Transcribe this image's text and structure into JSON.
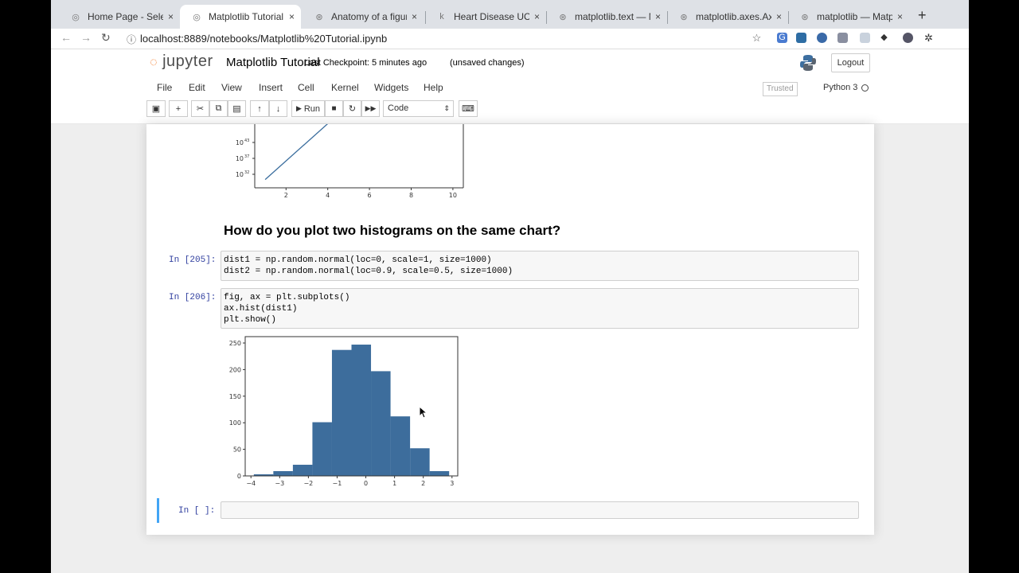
{
  "browser": {
    "tabs": [
      {
        "title": "Home Page - Select o",
        "favicon": "jupyter-icon",
        "active": false
      },
      {
        "title": "Matplotlib Tutorial - Ju",
        "favicon": "jupyter-icon",
        "active": true
      },
      {
        "title": "Anatomy of a figure —",
        "favicon": "matplotlib-icon",
        "active": false
      },
      {
        "title": "Heart Disease UCI | K",
        "favicon": "kaggle-icon",
        "active": false
      },
      {
        "title": "matplotlib.text — Mat",
        "favicon": "matplotlib-icon",
        "active": false
      },
      {
        "title": "matplotlib.axes.Axes.t",
        "favicon": "matplotlib-icon",
        "active": false
      },
      {
        "title": "matplotlib — Matplotl",
        "favicon": "matplotlib-icon",
        "active": false
      }
    ],
    "close_glyph": "×",
    "new_tab_glyph": "+",
    "url": "localhost:8889/notebooks/Matplotlib%20Tutorial.ipynb"
  },
  "jupyter": {
    "logo_text": "jupyter",
    "notebook_title": "Matplotlib Tutorial",
    "checkpoint": "Last Checkpoint: 5 minutes ago",
    "unsaved": "(unsaved changes)",
    "logout_label": "Logout",
    "menu": [
      "File",
      "Edit",
      "View",
      "Insert",
      "Cell",
      "Kernel",
      "Widgets",
      "Help"
    ],
    "trusted_label": "Trusted",
    "kernel_name": "Python 3",
    "toolbar": {
      "run_label": "Run",
      "cell_type": "Code"
    }
  },
  "notebook": {
    "heading": "How do you plot two histograms on the same chart?",
    "cells": [
      {
        "prompt": "In [205]:",
        "lines": [
          "dist1 = np.random.normal(loc=0, scale=1, size=1000)",
          "dist2 = np.random.normal(loc=0.9, scale=0.5, size=1000)"
        ]
      },
      {
        "prompt": "In [206]:",
        "lines": [
          "fig, ax = plt.subplots()",
          "ax.hist(dist1)",
          "plt.show()"
        ]
      },
      {
        "prompt": "In [ ]:",
        "lines": []
      }
    ]
  },
  "chart_data": [
    {
      "type": "line",
      "title": "",
      "xlabel": "",
      "ylabel": "",
      "x_ticks": [
        "2",
        "4",
        "6",
        "8",
        "10"
      ],
      "y_ticks_visible": [
        "10^43",
        "10^37",
        "10^32"
      ],
      "y_scale": "log",
      "x": [
        1,
        5
      ],
      "y_exp": [
        29,
        47
      ],
      "xlim": [
        0.5,
        10.5
      ],
      "color": "#3b6e9e",
      "note_cropped_top": true
    },
    {
      "type": "bar",
      "title": "",
      "xlabel": "",
      "ylabel": "",
      "bin_edges": [
        -3.9,
        -3.22,
        -2.54,
        -1.86,
        -1.18,
        -0.5,
        0.18,
        0.86,
        1.54,
        2.22,
        2.9
      ],
      "values": [
        3,
        9,
        21,
        101,
        237,
        247,
        197,
        112,
        52,
        9
      ],
      "xlim": [
        -4.2,
        3.2
      ],
      "ylim": [
        0,
        262
      ],
      "x_ticks": [
        -4,
        -3,
        -2,
        -1,
        0,
        1,
        2,
        3
      ],
      "y_ticks": [
        0,
        50,
        100,
        150,
        200,
        250
      ],
      "color": "#3d6d9c"
    }
  ]
}
